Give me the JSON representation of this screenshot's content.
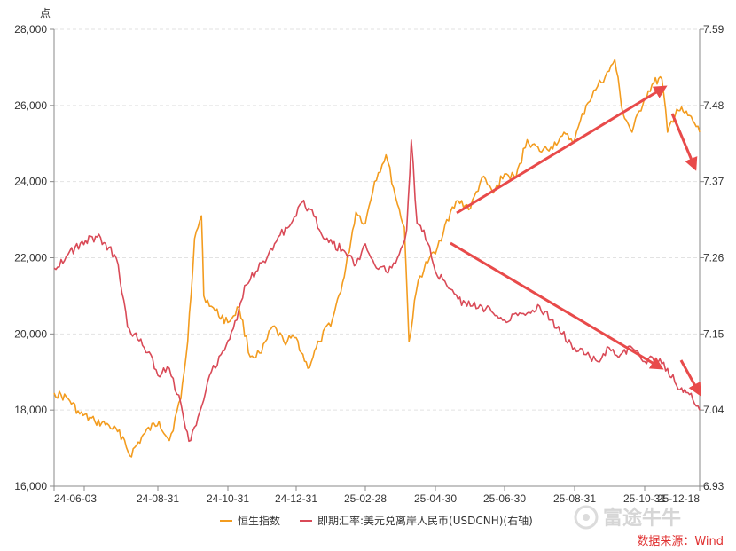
{
  "chart_data": {
    "type": "line",
    "ylabel": "点",
    "x_ticks": [
      "24-06-03",
      "24-08-31",
      "24-10-31",
      "24-12-31",
      "25-02-28",
      "25-04-30",
      "25-06-30",
      "25-08-31",
      "25-10-31",
      "25-12-18"
    ],
    "y_left": {
      "min": 16000,
      "max": 28000,
      "ticks": [
        "16,000",
        "18,000",
        "20,000",
        "22,000",
        "24,000",
        "26,000",
        "28,000"
      ]
    },
    "y_right": {
      "min": 6.93,
      "max": 7.59,
      "ticks": [
        "6.93",
        "7.04",
        "7.15",
        "7.26",
        "7.37",
        "7.48",
        "7.59"
      ]
    },
    "legend_position": "bottom",
    "grid": true,
    "series": [
      {
        "name": "恒生指数",
        "axis": "left",
        "color": "#f39c1f",
        "points": [
          [
            "24-06-03",
            18450
          ],
          [
            "24-06-15",
            18300
          ],
          [
            "24-06-25",
            17900
          ],
          [
            "24-07-08",
            17700
          ],
          [
            "24-07-20",
            17600
          ],
          [
            "24-08-01",
            17300
          ],
          [
            "24-08-07",
            16800
          ],
          [
            "24-08-20",
            17400
          ],
          [
            "24-09-01",
            17700
          ],
          [
            "24-09-10",
            17200
          ],
          [
            "24-09-20",
            18300
          ],
          [
            "24-09-26",
            19800
          ],
          [
            "24-10-02",
            22500
          ],
          [
            "24-10-08",
            23100
          ],
          [
            "24-10-10",
            21000
          ],
          [
            "24-10-20",
            20600
          ],
          [
            "24-10-31",
            20300
          ],
          [
            "24-11-10",
            20700
          ],
          [
            "24-11-20",
            19400
          ],
          [
            "24-11-30",
            19500
          ],
          [
            "24-12-10",
            20200
          ],
          [
            "24-12-20",
            19800
          ],
          [
            "24-12-31",
            19900
          ],
          [
            "25-01-10",
            19100
          ],
          [
            "25-01-20",
            19800
          ],
          [
            "25-01-31",
            20400
          ],
          [
            "25-02-10",
            21500
          ],
          [
            "25-02-20",
            23200
          ],
          [
            "25-02-28",
            22900
          ],
          [
            "25-03-08",
            24000
          ],
          [
            "25-03-18",
            24700
          ],
          [
            "25-03-28",
            23400
          ],
          [
            "25-04-03",
            22800
          ],
          [
            "25-04-07",
            19800
          ],
          [
            "25-04-15",
            21400
          ],
          [
            "25-04-25",
            22000
          ],
          [
            "25-04-30",
            22100
          ],
          [
            "25-05-10",
            23000
          ],
          [
            "25-05-20",
            23500
          ],
          [
            "25-05-31",
            23300
          ],
          [
            "25-06-10",
            24100
          ],
          [
            "25-06-20",
            23700
          ],
          [
            "25-06-30",
            24200
          ],
          [
            "25-07-10",
            24100
          ],
          [
            "25-07-20",
            25100
          ],
          [
            "25-07-31",
            24800
          ],
          [
            "25-08-10",
            24900
          ],
          [
            "25-08-20",
            25200
          ],
          [
            "25-08-31",
            25100
          ],
          [
            "25-09-10",
            26000
          ],
          [
            "25-09-20",
            26500
          ],
          [
            "25-09-30",
            26900
          ],
          [
            "25-10-05",
            27200
          ],
          [
            "25-10-12",
            25800
          ],
          [
            "25-10-20",
            25300
          ],
          [
            "25-10-31",
            26200
          ],
          [
            "25-11-08",
            26600
          ],
          [
            "25-11-15",
            26700
          ],
          [
            "25-11-20",
            25300
          ],
          [
            "25-11-28",
            25900
          ],
          [
            "25-12-05",
            25800
          ],
          [
            "25-12-12",
            25600
          ],
          [
            "25-12-18",
            25300
          ]
        ]
      },
      {
        "name": "即期汇率:美元兑离岸人民币(USDCNH)(右轴)",
        "axis": "right",
        "color": "#d94a57",
        "points": [
          [
            "24-06-03",
            7.245
          ],
          [
            "24-06-15",
            7.265
          ],
          [
            "24-06-30",
            7.285
          ],
          [
            "24-07-10",
            7.29
          ],
          [
            "24-07-20",
            7.275
          ],
          [
            "24-07-28",
            7.25
          ],
          [
            "24-08-05",
            7.16
          ],
          [
            "24-08-15",
            7.14
          ],
          [
            "24-08-25",
            7.12
          ],
          [
            "24-08-31",
            7.09
          ],
          [
            "24-09-10",
            7.1
          ],
          [
            "24-09-20",
            7.05
          ],
          [
            "24-09-27",
            6.995
          ],
          [
            "24-10-05",
            7.03
          ],
          [
            "24-10-15",
            7.09
          ],
          [
            "24-10-25",
            7.12
          ],
          [
            "24-10-31",
            7.14
          ],
          [
            "24-11-08",
            7.17
          ],
          [
            "24-11-15",
            7.22
          ],
          [
            "24-11-25",
            7.24
          ],
          [
            "24-12-05",
            7.26
          ],
          [
            "24-12-15",
            7.29
          ],
          [
            "24-12-31",
            7.32
          ],
          [
            "25-01-05",
            7.34
          ],
          [
            "25-01-12",
            7.33
          ],
          [
            "25-01-20",
            7.3
          ],
          [
            "25-01-31",
            7.28
          ],
          [
            "25-02-10",
            7.27
          ],
          [
            "25-02-20",
            7.25
          ],
          [
            "25-02-28",
            7.28
          ],
          [
            "25-03-08",
            7.25
          ],
          [
            "25-03-18",
            7.24
          ],
          [
            "25-03-28",
            7.26
          ],
          [
            "25-04-05",
            7.3
          ],
          [
            "25-04-09",
            7.43
          ],
          [
            "25-04-14",
            7.31
          ],
          [
            "25-04-20",
            7.3
          ],
          [
            "25-04-30",
            7.24
          ],
          [
            "25-05-10",
            7.22
          ],
          [
            "25-05-20",
            7.2
          ],
          [
            "25-05-31",
            7.19
          ],
          [
            "25-06-10",
            7.19
          ],
          [
            "25-06-20",
            7.18
          ],
          [
            "25-06-30",
            7.17
          ],
          [
            "25-07-10",
            7.18
          ],
          [
            "25-07-20",
            7.18
          ],
          [
            "25-07-31",
            7.19
          ],
          [
            "25-08-10",
            7.17
          ],
          [
            "25-08-20",
            7.15
          ],
          [
            "25-08-31",
            7.13
          ],
          [
            "25-09-10",
            7.12
          ],
          [
            "25-09-20",
            7.11
          ],
          [
            "25-09-30",
            7.13
          ],
          [
            "25-10-10",
            7.12
          ],
          [
            "25-10-20",
            7.13
          ],
          [
            "25-10-31",
            7.11
          ],
          [
            "25-11-10",
            7.115
          ],
          [
            "25-11-20",
            7.1
          ],
          [
            "25-11-28",
            7.075
          ],
          [
            "25-12-05",
            7.07
          ],
          [
            "25-12-12",
            7.055
          ],
          [
            "25-12-18",
            7.04
          ]
        ]
      }
    ],
    "source": "数据来源：Wind"
  },
  "watermark": {
    "text": "富途牛牛"
  }
}
